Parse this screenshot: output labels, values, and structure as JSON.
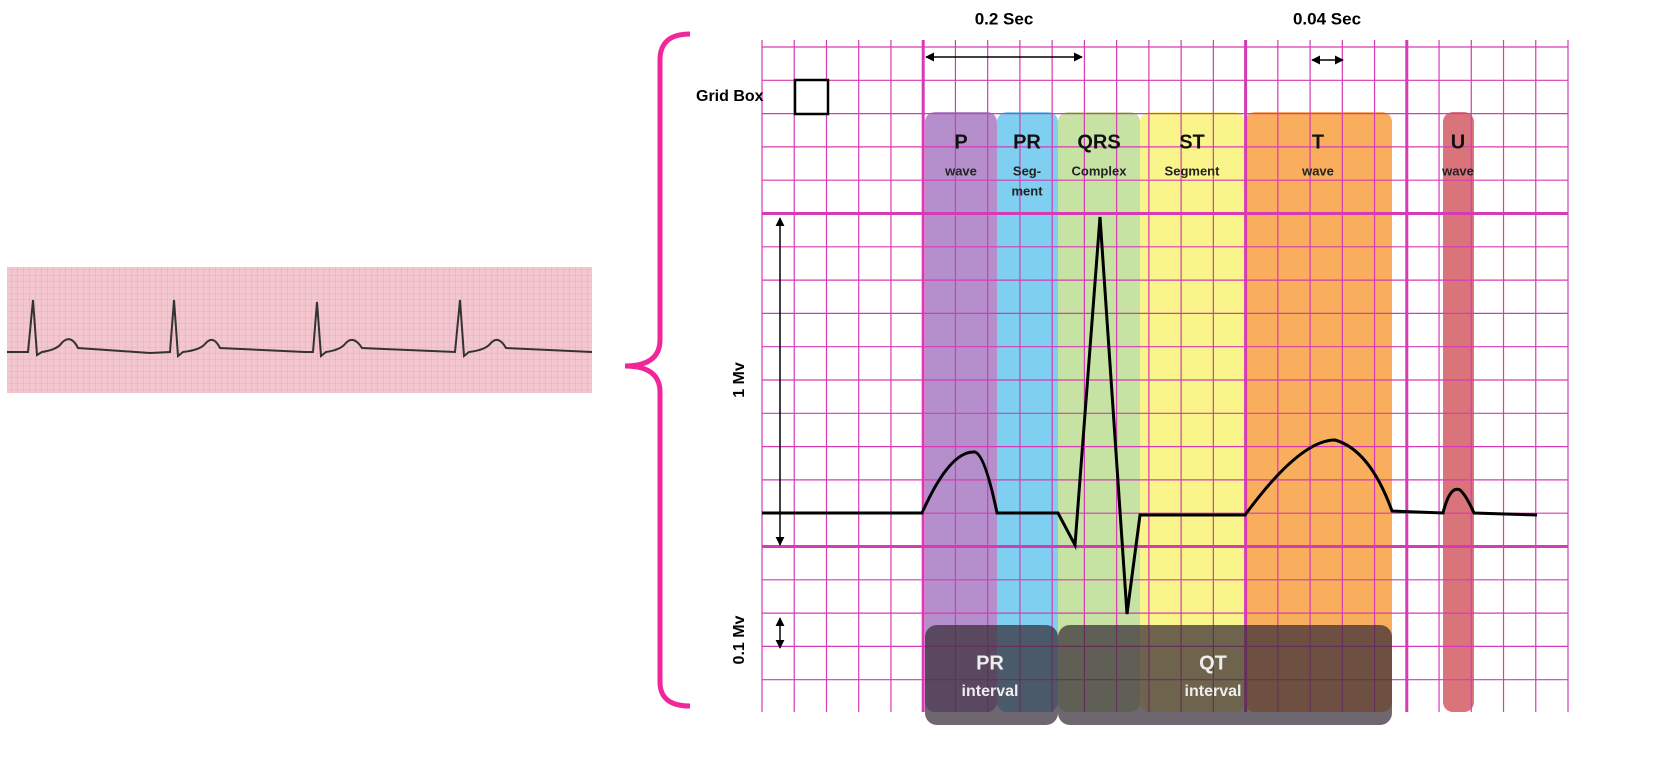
{
  "timing": {
    "interval_long": "0.2 Sec",
    "interval_short": "0.04 Sec"
  },
  "grid_box_label": "Grid Box",
  "voltage": {
    "large": "1 Mv",
    "small": "0.1 Mv"
  },
  "segments": [
    {
      "name": "P",
      "sub": [
        "wave"
      ]
    },
    {
      "name": "PR",
      "sub": [
        "Seg-",
        "ment"
      ]
    },
    {
      "name": "QRS",
      "sub": [
        "Complex"
      ]
    },
    {
      "name": "ST",
      "sub": [
        "Segment"
      ]
    },
    {
      "name": "T",
      "sub": [
        "wave"
      ]
    },
    {
      "name": "U",
      "sub": [
        "wave"
      ]
    }
  ],
  "intervals": [
    {
      "name": "PR",
      "sub": "interval"
    },
    {
      "name": "QT",
      "sub": "interval"
    }
  ]
}
